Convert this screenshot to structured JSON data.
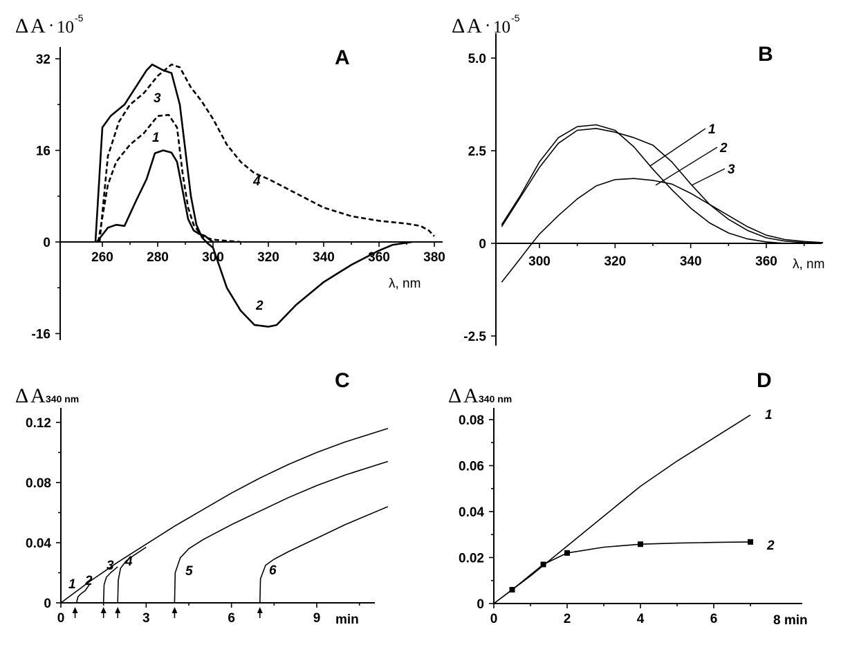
{
  "chart_data": [
    {
      "panel": "A",
      "type": "line",
      "title": "A",
      "ylabel": {
        "delta": "Δ",
        "a": "A",
        "dot": "·",
        "mult": "10",
        "exp": "-5"
      },
      "xlabel": "λ, nm",
      "xlim": [
        255,
        382
      ],
      "ylim": [
        -16,
        32
      ],
      "xticks": [
        "260",
        "280",
        "300",
        "320",
        "340",
        "360",
        "380"
      ],
      "yticks": [
        "-16",
        "0",
        "16",
        "32"
      ],
      "series": [
        {
          "name": "1",
          "style": "solid",
          "x": [
            258,
            262,
            265,
            268,
            272,
            276,
            279,
            282,
            285,
            287,
            289,
            291,
            293,
            295,
            297,
            298.5,
            300
          ],
          "y": [
            0,
            2.5,
            3,
            2.8,
            7,
            11,
            15.5,
            16,
            15.6,
            14,
            9,
            4,
            2,
            1.4,
            1.1,
            0.5,
            0
          ]
        },
        {
          "name": "2",
          "style": "solid",
          "x": [
            257.5,
            260,
            263,
            268,
            272,
            276,
            278,
            282,
            285,
            288,
            290,
            292,
            294,
            296,
            298,
            300,
            305,
            310,
            315,
            320,
            323,
            330,
            340,
            350,
            360,
            365,
            372
          ],
          "y": [
            0,
            20,
            22,
            24,
            27,
            30,
            31,
            30,
            29.5,
            24,
            16,
            8,
            3,
            0.8,
            -0.2,
            -1,
            -8,
            -12,
            -14.5,
            -14.8,
            -14.5,
            -11,
            -7,
            -4,
            -1.5,
            -0.5,
            0
          ]
        },
        {
          "name": "3",
          "style": "dashed",
          "x": [
            258.5,
            262,
            265,
            270,
            275,
            280,
            284,
            287,
            289,
            291,
            293,
            296,
            300,
            310
          ],
          "y": [
            0,
            10,
            14,
            17,
            19,
            22,
            22.2,
            20,
            12,
            6,
            3,
            1,
            0.4,
            0
          ]
        },
        {
          "name": "4",
          "style": "dashed",
          "x": [
            259,
            262,
            266,
            270,
            275,
            280,
            285,
            288,
            292,
            296,
            300,
            305,
            310,
            315,
            320,
            330,
            340,
            350,
            360,
            370,
            375,
            378,
            380
          ],
          "y": [
            0,
            15,
            21,
            24,
            26,
            29,
            31,
            30.5,
            27,
            24.5,
            21.5,
            17,
            14,
            12,
            11,
            8.5,
            6,
            4.5,
            3.7,
            3.2,
            2.8,
            2,
            1
          ]
        }
      ],
      "curve_labels": [
        "1",
        "2",
        "3",
        "4"
      ]
    },
    {
      "panel": "B",
      "type": "line",
      "title": "B",
      "ylabel": {
        "delta": "Δ",
        "a": "A",
        "dot": "·",
        "mult": "10",
        "exp": "-5"
      },
      "xlabel": "λ, nm",
      "xlim": [
        290,
        375
      ],
      "ylim": [
        -2.5,
        5.0
      ],
      "xticks": [
        "300",
        "320",
        "340",
        "360"
      ],
      "yticks": [
        "-2.5",
        "0",
        "2.5",
        "5.0"
      ],
      "series": [
        {
          "name": "1",
          "x": [
            290,
            295,
            300,
            305,
            310,
            315,
            320,
            325,
            330,
            335,
            340,
            345,
            350,
            355,
            360,
            365
          ],
          "y": [
            0.5,
            1.3,
            2.2,
            2.85,
            3.15,
            3.2,
            3.05,
            2.6,
            2.0,
            1.45,
            0.95,
            0.55,
            0.28,
            0.12,
            0.04,
            0
          ]
        },
        {
          "name": "2",
          "x": [
            290,
            295,
            300,
            305,
            310,
            315,
            320,
            325,
            330,
            335,
            340,
            345,
            350,
            355,
            360,
            365,
            370,
            375
          ],
          "y": [
            0.45,
            1.25,
            2.05,
            2.7,
            3.05,
            3.1,
            3.0,
            2.85,
            2.65,
            2.2,
            1.6,
            1.05,
            0.65,
            0.35,
            0.15,
            0.06,
            0.02,
            0.01
          ]
        },
        {
          "name": "3",
          "x": [
            290,
            295,
            298,
            300,
            305,
            310,
            315,
            320,
            325,
            330,
            335,
            340,
            345,
            350,
            355,
            360,
            365,
            370,
            375
          ],
          "y": [
            -1.05,
            -0.4,
            0,
            0.25,
            0.75,
            1.2,
            1.55,
            1.72,
            1.75,
            1.7,
            1.6,
            1.35,
            1.05,
            0.75,
            0.45,
            0.22,
            0.1,
            0.05,
            0.02
          ]
        }
      ],
      "curve_labels": [
        "1",
        "2",
        "3"
      ]
    },
    {
      "panel": "C",
      "type": "line",
      "title": "C",
      "ylabel": {
        "delta": "Δ",
        "a": "A",
        "sub": "340 nm"
      },
      "xlabel": "min",
      "xlim": [
        0,
        11.5
      ],
      "ylim": [
        0,
        0.13
      ],
      "xticks": [
        "0",
        "3",
        "6",
        "9"
      ],
      "yticks": [
        "0",
        "0.04",
        "0.08",
        "0.12"
      ],
      "series": [
        {
          "name": "1",
          "x": [
            0,
            1,
            2,
            3,
            4,
            5,
            6,
            7,
            8,
            9,
            10,
            11.5
          ],
          "y": [
            0,
            0.014,
            0.027,
            0.039,
            0.051,
            0.062,
            0.073,
            0.083,
            0.092,
            0.1,
            0.107,
            0.116
          ]
        },
        {
          "name": "2",
          "x": [
            0.55,
            0.6,
            0.7,
            0.85,
            1.0
          ],
          "y": [
            0,
            0.004,
            0.006,
            0.008,
            0.012
          ]
        },
        {
          "name": "3",
          "x": [
            1.5,
            1.52,
            1.6,
            1.75,
            2.0
          ],
          "y": [
            0,
            0.012,
            0.017,
            0.02,
            0.024
          ]
        },
        {
          "name": "4",
          "x": [
            2.0,
            2.02,
            2.1,
            2.3,
            2.6,
            3.0
          ],
          "y": [
            0,
            0.015,
            0.023,
            0.028,
            0.032,
            0.037
          ]
        },
        {
          "name": "5",
          "x": [
            4.0,
            4.02,
            4.2,
            4.5,
            5,
            6,
            7,
            8,
            9,
            10,
            11.5
          ],
          "y": [
            0,
            0.02,
            0.03,
            0.036,
            0.042,
            0.052,
            0.061,
            0.07,
            0.078,
            0.085,
            0.094
          ]
        },
        {
          "name": "6",
          "x": [
            7.0,
            7.02,
            7.2,
            7.5,
            8,
            9,
            10,
            11.5
          ],
          "y": [
            0,
            0.016,
            0.025,
            0.029,
            0.034,
            0.043,
            0.052,
            0.064
          ]
        }
      ],
      "arrows_x": [
        0.5,
        1.5,
        2.0,
        4.0,
        7.0
      ],
      "curve_labels": [
        "1",
        "2",
        "3",
        "4",
        "5",
        "6"
      ]
    },
    {
      "panel": "D",
      "type": "line",
      "title": "D",
      "ylabel": {
        "delta": "Δ",
        "a": "A",
        "sub": "340 nm"
      },
      "xlabel": "8 min",
      "xlim": [
        0,
        9
      ],
      "ylim": [
        0,
        0.088
      ],
      "xticks": [
        "0",
        "2",
        "4",
        "6"
      ],
      "yticks": [
        "0",
        "0.02",
        "0.04",
        "0.06",
        "0.08"
      ],
      "series": [
        {
          "name": "1",
          "x": [
            0,
            1,
            2,
            3,
            4,
            5,
            6,
            7
          ],
          "y": [
            0,
            0.012,
            0.025,
            0.038,
            0.051,
            0.062,
            0.072,
            0.082
          ]
        },
        {
          "name": "2",
          "x": [
            0,
            0.5,
            1.35,
            2.0,
            3.0,
            4.0,
            5.0,
            6.0,
            7.0
          ],
          "y": [
            0,
            0.006,
            0.017,
            0.022,
            0.0245,
            0.0258,
            0.0263,
            0.0266,
            0.0268
          ],
          "markers_x": [
            0.5,
            1.35,
            2.0,
            4.0,
            7.0
          ],
          "markers_y": [
            0.006,
            0.017,
            0.022,
            0.0258,
            0.0268
          ]
        }
      ],
      "curve_labels": [
        "1",
        "2"
      ]
    }
  ]
}
